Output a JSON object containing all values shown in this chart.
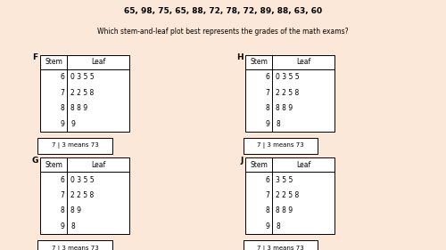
{
  "title_data": "65, 98, 75, 65, 88, 72, 78, 72, 89, 88, 63, 60",
  "question": "Which stem-and-leaf plot best represents the grades of the math exams?",
  "background_color": "#fce8d8",
  "plots": [
    {
      "label": "F",
      "stems": [
        "6",
        "7",
        "8",
        "9"
      ],
      "leaves": [
        "0 3 5 5",
        "2 2 5 8",
        "8 8 9",
        "9"
      ]
    },
    {
      "label": "H",
      "stems": [
        "6",
        "7",
        "8",
        "9"
      ],
      "leaves": [
        "0 3 5 5",
        "2 2 5 8",
        "8 8 9",
        "8"
      ]
    },
    {
      "label": "G",
      "stems": [
        "6",
        "7",
        "8",
        "9"
      ],
      "leaves": [
        "0 3 5 5",
        "2 2 5 8",
        "8 9",
        "8"
      ]
    },
    {
      "label": "J",
      "stems": [
        "6",
        "7",
        "8",
        "9"
      ],
      "leaves": [
        "3 5 5",
        "2 2 5 8",
        "8 8 9",
        "8"
      ]
    }
  ],
  "key_text": "7 | 3 means 73",
  "title_fontsize": 6.5,
  "question_fontsize": 5.5,
  "table_fontsize": 5.5,
  "label_fontsize": 6.5
}
